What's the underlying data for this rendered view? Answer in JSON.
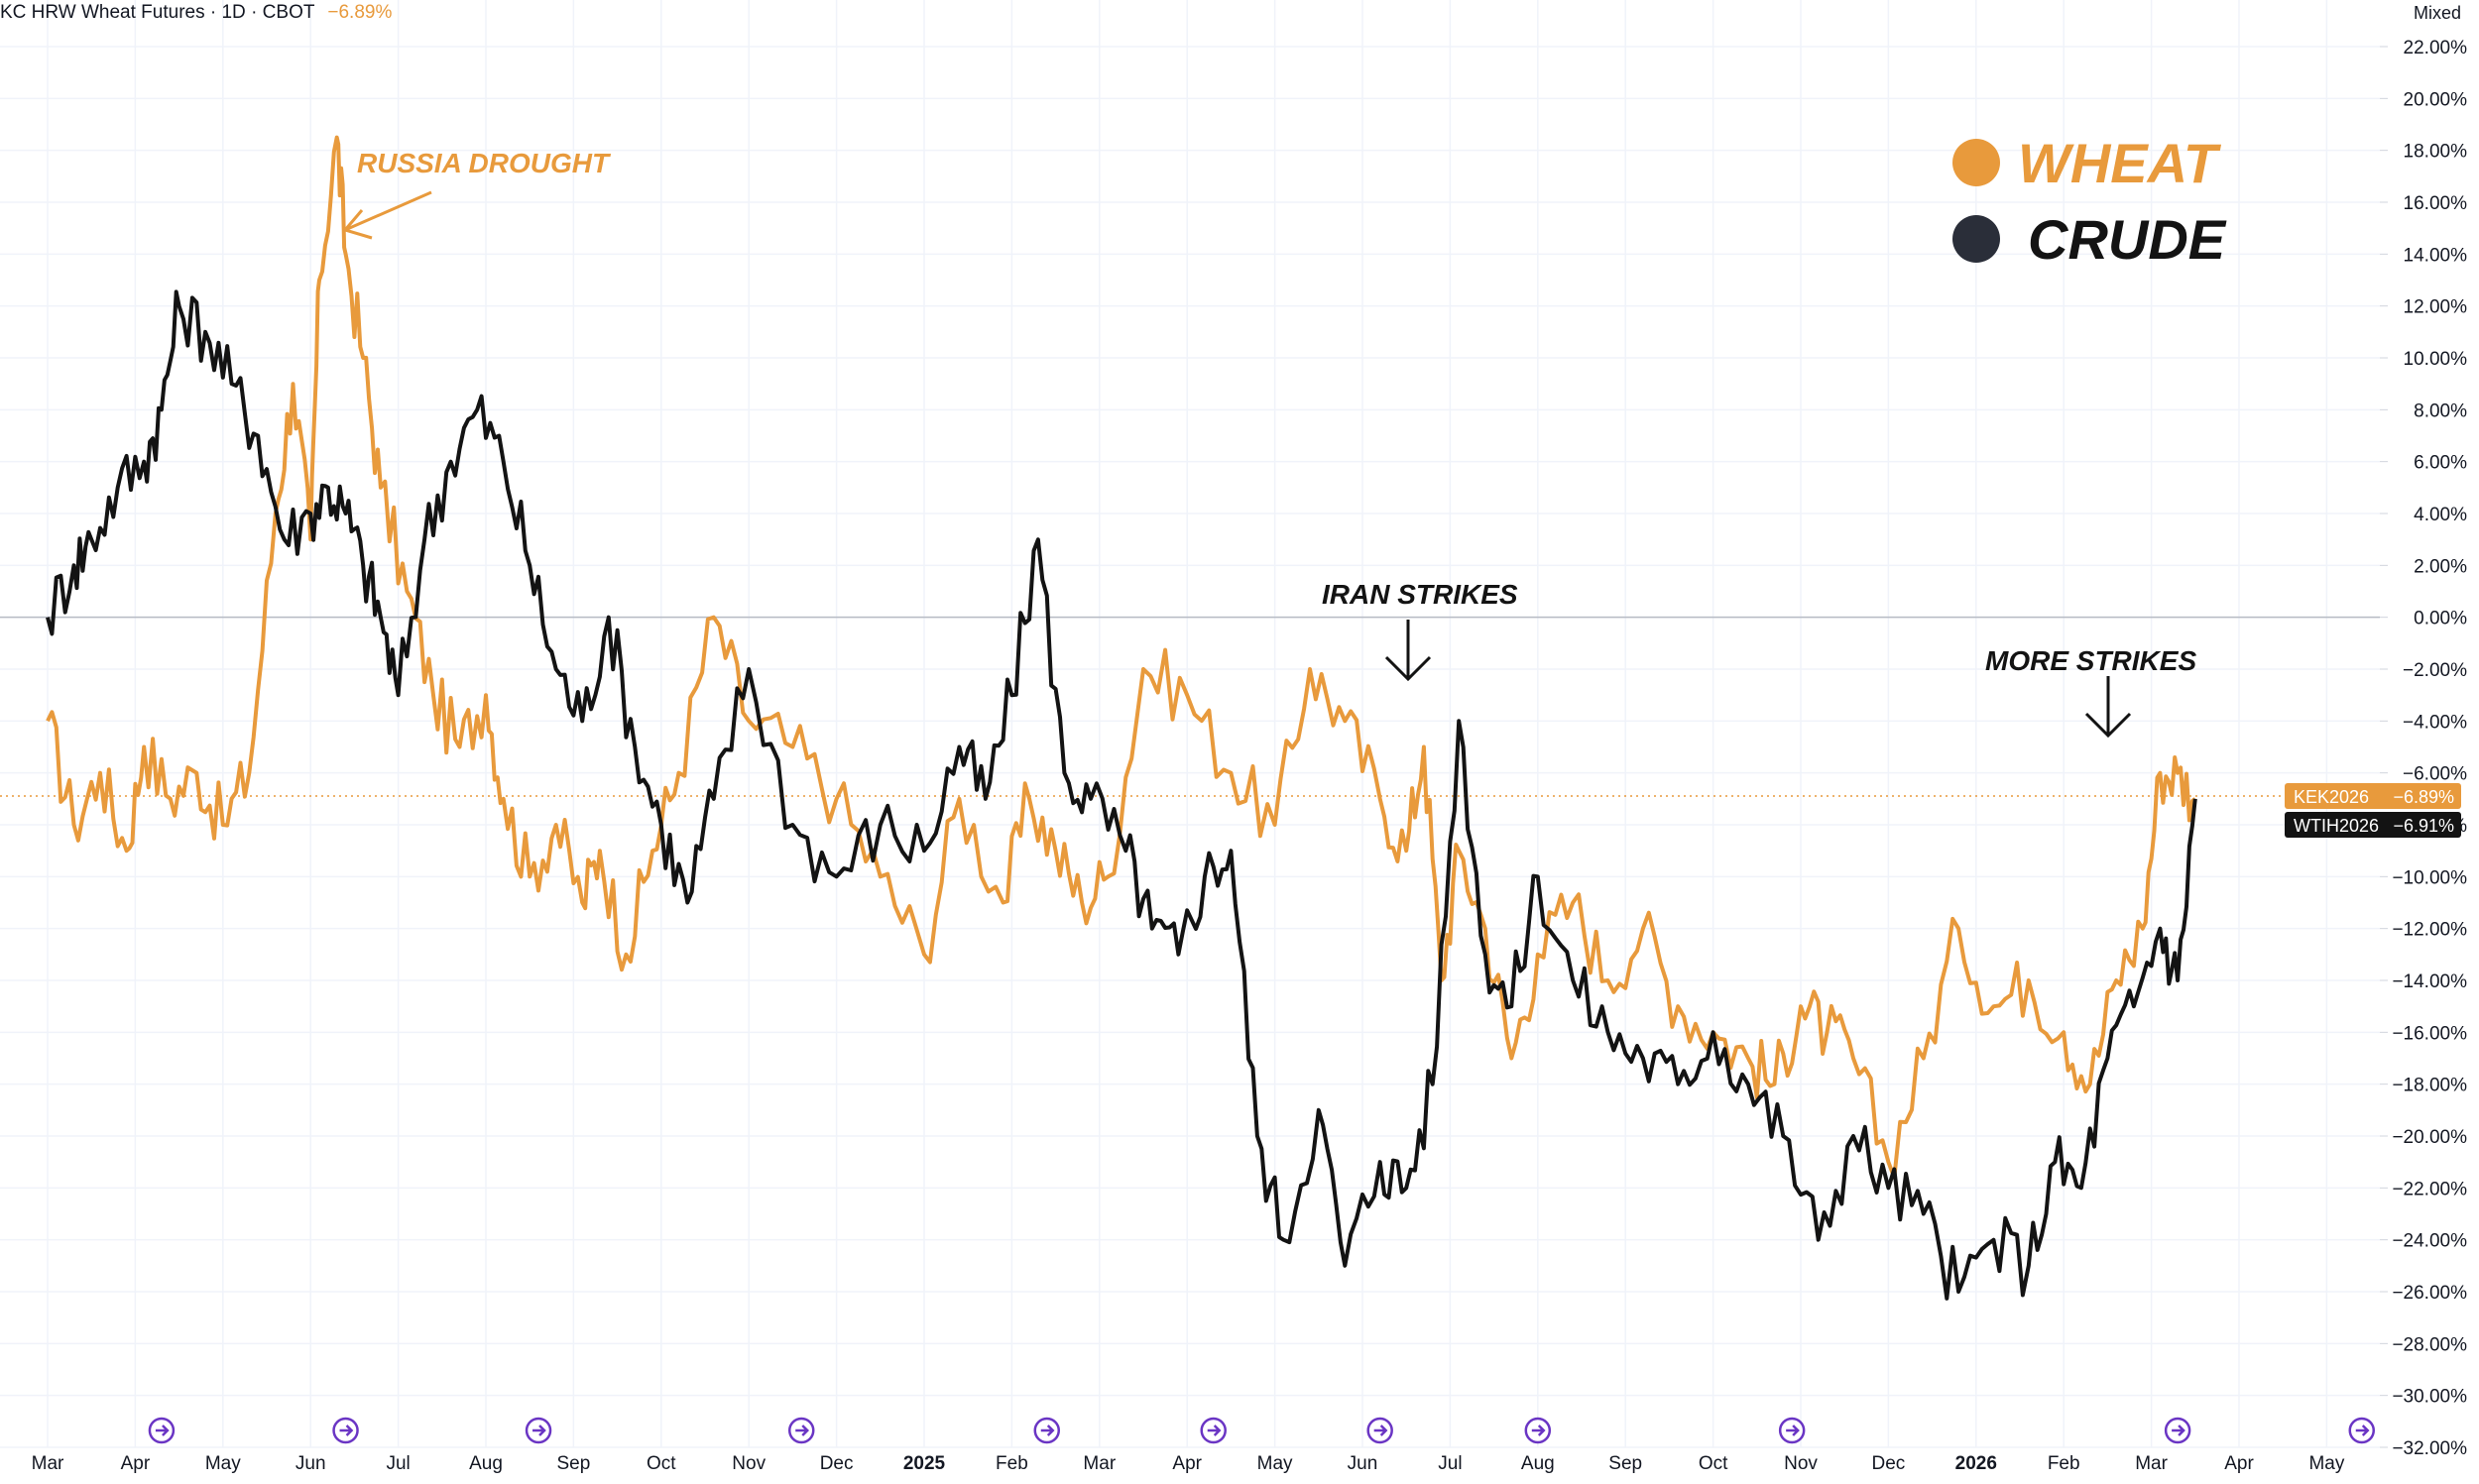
{
  "header": {
    "symbol": "KC HRW Wheat Futures",
    "interval": "1D",
    "exchange": "CBOT",
    "change": "−6.89%"
  },
  "scale_mode": "Mixed",
  "colors": {
    "wheat": "#e89a3c",
    "crude": "#131313",
    "grid": "#f0f3fa",
    "zero_line": "#b7bbc4",
    "event_icon": "#6a35c4"
  },
  "legend": {
    "items": [
      {
        "label": "WHEAT",
        "color": "#e89a3c"
      },
      {
        "label": "CRUDE",
        "color": "#2a2e39"
      }
    ]
  },
  "annotations": {
    "russia_drought": "RUSSIA DROUGHT",
    "iran_strikes": "IRAN STRIKES",
    "more_strikes": "MORE STRIKES"
  },
  "price_labels": [
    {
      "symbol": "KEK2026",
      "value": "−6.89%",
      "color": "#e89a3c"
    },
    {
      "symbol": "WTIH2026",
      "value": "−6.91%",
      "color": "#131313"
    }
  ],
  "event_icon_name": "dividend-forward-icon",
  "chart_data": {
    "type": "line",
    "ylim": [
      -32,
      22
    ],
    "y_ticks": [
      "22.00%",
      "20.00%",
      "18.00%",
      "16.00%",
      "14.00%",
      "12.00%",
      "10.00%",
      "8.00%",
      "6.00%",
      "4.00%",
      "2.00%",
      "0.00%",
      "−2.00%",
      "−4.00%",
      "−6.00%",
      "−8.00%",
      "−10.00%",
      "−12.00%",
      "−14.00%",
      "−16.00%",
      "−18.00%",
      "−20.00%",
      "−22.00%",
      "−24.00%",
      "−26.00%",
      "−28.00%",
      "−30.00%",
      "−32.00%"
    ],
    "x_ticks": [
      "Mar",
      "Apr",
      "May",
      "Jun",
      "Jul",
      "Aug",
      "Sep",
      "Oct",
      "Nov",
      "Dec",
      "2025",
      "Feb",
      "Mar",
      "Apr",
      "May",
      "Jun",
      "Jul",
      "Aug",
      "Sep",
      "Oct",
      "Nov",
      "Dec",
      "2026",
      "Feb",
      "Mar",
      "Apr",
      "May"
    ],
    "x_bold_ticks": [
      "2025",
      "2026"
    ],
    "grid": true,
    "legend_position": "top-right",
    "series": [
      {
        "name": "WHEAT",
        "x": [
          0,
          0.3,
          0.6,
          0.9,
          1.1,
          1.4,
          1.7,
          2.0,
          2.3,
          2.6,
          2.8,
          3.0,
          3.1,
          3.3,
          3.4,
          3.6,
          3.8,
          4.1,
          4.4,
          4.7,
          5.0,
          5.2,
          5.5,
          5.8,
          6.1,
          6.3,
          6.6,
          6.9,
          7.2,
          7.6,
          8.0,
          8.5,
          9.0,
          9.5,
          10.0,
          10.4,
          10.9,
          11.2,
          11.5,
          11.8,
          12.1,
          12.5,
          13.0,
          13.5,
          14.0,
          14.4,
          14.8,
          15.2,
          15.5,
          15.7,
          15.9,
          16.1,
          16.4,
          16.7,
          17.0,
          17.4,
          17.8,
          18.2,
          18.6,
          19.0,
          19.4,
          19.7,
          20.0,
          20.3,
          20.6,
          21.0,
          21.4,
          21.8,
          22.2,
          22.6,
          23.0,
          23.3,
          23.6,
          23.9,
          24.1,
          24.3,
          24.5
        ],
        "values": [
          -4,
          -8,
          -6,
          -9,
          -5,
          -7,
          -6,
          -8,
          -6,
          4,
          9,
          3,
          13,
          18.5,
          14,
          10,
          5,
          1,
          -3,
          -5,
          -3,
          -7,
          -10,
          -8,
          -11,
          -9,
          -13,
          -9,
          -6,
          0,
          -4,
          -5,
          -7,
          -10,
          -13,
          -7,
          -11,
          -7,
          -9,
          -11,
          -10,
          -2,
          -3,
          -6,
          -8,
          -2,
          -4,
          -7,
          -9,
          -5,
          -14,
          -9,
          -12,
          -17,
          -13,
          -11,
          -14,
          -12,
          -15,
          -16,
          -17,
          -18,
          -15,
          -16,
          -17,
          -21,
          -17,
          -12,
          -15,
          -14,
          -16,
          -18,
          -14,
          -12,
          -6,
          -6,
          -7
        ]
      },
      {
        "name": "CRUDE",
        "x": [
          0,
          0.3,
          0.5,
          0.8,
          1.1,
          1.3,
          1.5,
          1.8,
          2.1,
          2.4,
          2.7,
          3.0,
          3.2,
          3.4,
          3.6,
          3.8,
          4.0,
          4.3,
          4.6,
          4.9,
          5.2,
          5.5,
          5.8,
          6.1,
          6.4,
          6.7,
          7.0,
          7.3,
          7.6,
          8.0,
          8.5,
          9.0,
          9.5,
          10.0,
          10.4,
          10.7,
          11.0,
          11.3,
          11.6,
          11.9,
          12.3,
          12.6,
          12.9,
          13.2,
          13.5,
          13.8,
          14.1,
          14.5,
          14.8,
          15.2,
          15.5,
          15.8,
          16.1,
          16.4,
          16.7,
          17.0,
          17.4,
          17.8,
          18.2,
          18.6,
          19.0,
          19.4,
          19.8,
          20.2,
          20.6,
          21.0,
          21.4,
          21.8,
          22.2,
          22.6,
          22.9,
          23.2,
          23.5,
          23.8,
          24.1,
          24.3,
          24.5
        ],
        "values": [
          0,
          2,
          3,
          5,
          6,
          8,
          12,
          11,
          9,
          7,
          3,
          4,
          5,
          4,
          2,
          0,
          -3,
          3,
          6,
          8,
          6,
          2,
          -2,
          -4,
          0,
          -5,
          -8,
          -11,
          -7,
          -2,
          -8,
          -10,
          -8,
          -9,
          -5,
          -7,
          -3,
          3,
          -6,
          -7,
          -9,
          -12,
          -13,
          -10,
          -9,
          -20,
          -24,
          -19,
          -25,
          -21,
          -22,
          -18,
          -4,
          -13,
          -15,
          -10,
          -14,
          -16,
          -17,
          -18,
          -16,
          -18,
          -20,
          -24,
          -20,
          -22,
          -23,
          -26,
          -24,
          -25,
          -21,
          -22,
          -17,
          -15,
          -12,
          -14,
          -7
        ]
      }
    ]
  }
}
